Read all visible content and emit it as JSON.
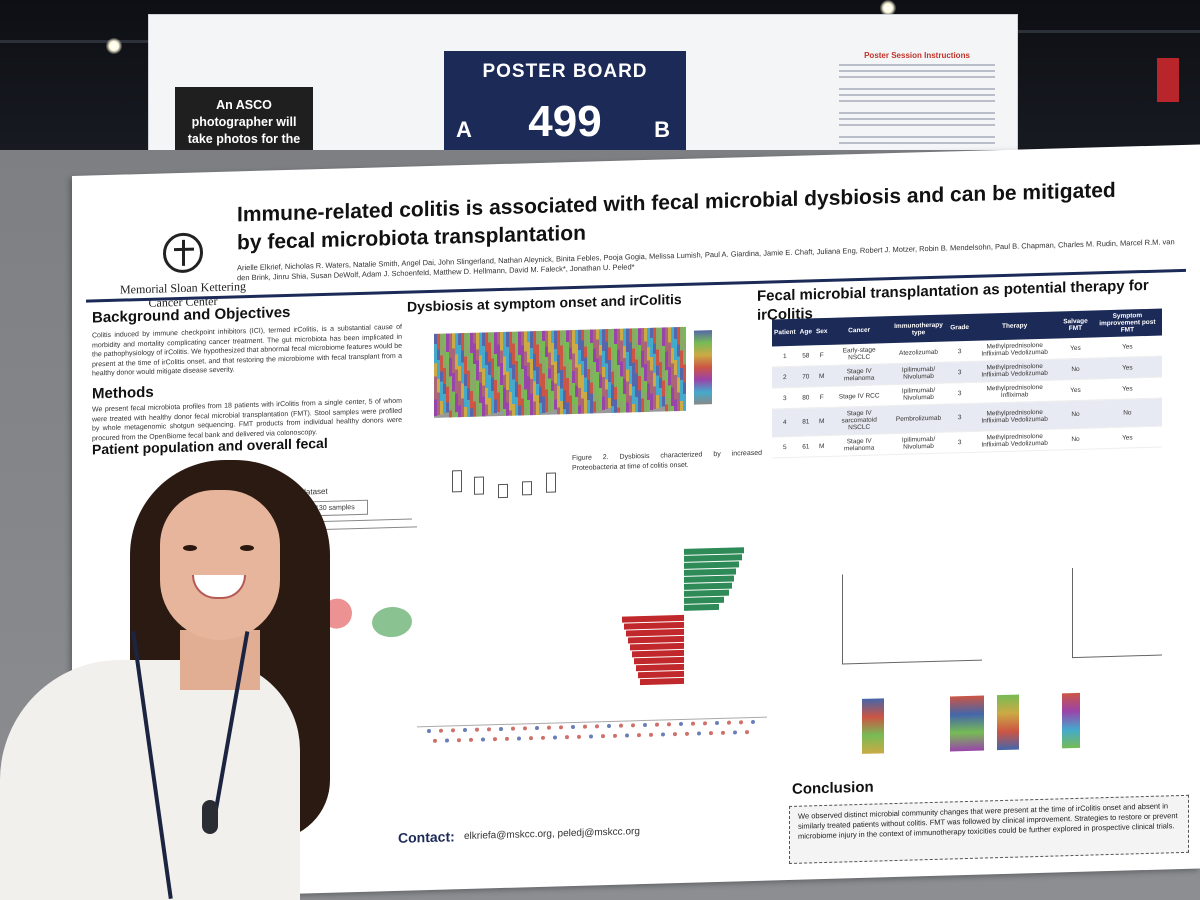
{
  "header": {
    "photographer_notice": "An ASCO photographer will take photos for the Digital Program.",
    "board_label": "POSTER BOARD",
    "board_number": "499",
    "side_a": "A",
    "side_b": "B",
    "instructions_title": "Poster Session Instructions"
  },
  "poster": {
    "logo_text": "Memorial Sloan Kettering Cancer Center",
    "title": "Immune-related colitis is associated with fecal microbial dysbiosis and can be mitigated by fecal microbiota transplantation",
    "authors": "Arielle Elkrief, Nicholas R. Waters, Natalie Smith, Angel Dai, John Slingerland, Nathan Aleynick, Binita Febles, Pooja Gogia, Melissa Lumish, Paul A. Giardina, Jamie E. Chaft, Juliana Eng, Robert J. Motzer, Robin B. Mendelsohn, Paul B. Chapman, Charles M. Rudin, Marcel R.M. van den Brink, Jinru Shia, Susan DeWolf, Adam J. Schoenfeld, Matthew D. Hellmann, David M. Faleck*, Jonathan U. Peled*",
    "sections": {
      "background": "Background and Objectives",
      "background_text": "Colitis induced by immune checkpoint inhibitors (ICI), termed irColitis, is a substantial cause of morbidity and mortality complicating cancer treatment. The gut microbiota has been implicated in the pathophysiology of irColitis. We hypothesized that abnormal fecal microbiome features would be present at the time of irColitis onset, and that restoring the microbiome with fecal transplant from a healthy donor would mitigate disease severity.",
      "methods": "Methods",
      "methods_text": "We present fecal microbiota profiles from 18 patients with irColitis from a single center, 5 of whom were treated with healthy donor fecal microbial transplantation (FMT). Stool samples were profiled by whole metagenomic shotgun sequencing. FMT products from individual healthy donors were procured from the OpenBiome fecal bank and delivered via colonoscopy.",
      "patient_pop": "Patient population and overall fecal",
      "dysbiosis": "Dysbiosis at symptom onset and irColitis",
      "fmt": "Fecal microbial transplantation as potential therapy for irColitis",
      "conclusion": "Conclusion",
      "conclusion_text": "We observed distinct microbial community changes that were present at the time of irColitis onset and absent in similarly treated patients without colitis. FMT was followed by clinical improvement. Strategies to restore or prevent microbiome injury in the context of immunotherapy toxicities could be further explored in prospective clinical trials."
    },
    "figure2_caption": "Figure 2. Dysbiosis characterized by increased Proteobacteria at time of colitis onset.",
    "hmp2_label": "HMP2 dataset",
    "samples_label": "130 samples",
    "table": {
      "headers": [
        "Patient",
        "Age",
        "Sex",
        "Cancer",
        "Immunotherapy type",
        "Grade",
        "Therapy",
        "Salvage FMT",
        "Symptom improvement post FMT"
      ],
      "rows": [
        [
          "1",
          "58",
          "F",
          "Early-stage NSCLC",
          "Atezolizumab",
          "3",
          "Methylprednisolone Infliximab Vedolizumab",
          "Yes",
          "Yes"
        ],
        [
          "2",
          "70",
          "M",
          "Stage IV melanoma",
          "Ipilimumab/ Nivolumab",
          "3",
          "Methylprednisolone Infliximab Vedolizumab",
          "No",
          "Yes"
        ],
        [
          "3",
          "80",
          "F",
          "Stage IV RCC",
          "Ipilimumab/ Nivolumab",
          "3",
          "Methylprednisolone Infliximab",
          "Yes",
          "Yes"
        ],
        [
          "4",
          "81",
          "M",
          "Stage IV sarcomatoid NSCLC",
          "Pembrolizumab",
          "3",
          "Methylprednisolone Infliximab Vedolizumab",
          "No",
          "No"
        ],
        [
          "5",
          "61",
          "M",
          "Stage IV melanoma",
          "Ipilimumab/ Nivolumab",
          "3",
          "Methylprednisolone Infliximab Vedolizumab",
          "No",
          "Yes"
        ]
      ]
    },
    "contact_label": "Contact:",
    "contact_emails": "elkriefa@mskcc.org, peledj@mskcc.org"
  },
  "colors": {
    "navy": "#1b2a57",
    "green": "#2e8b57",
    "red": "#c0282b"
  }
}
